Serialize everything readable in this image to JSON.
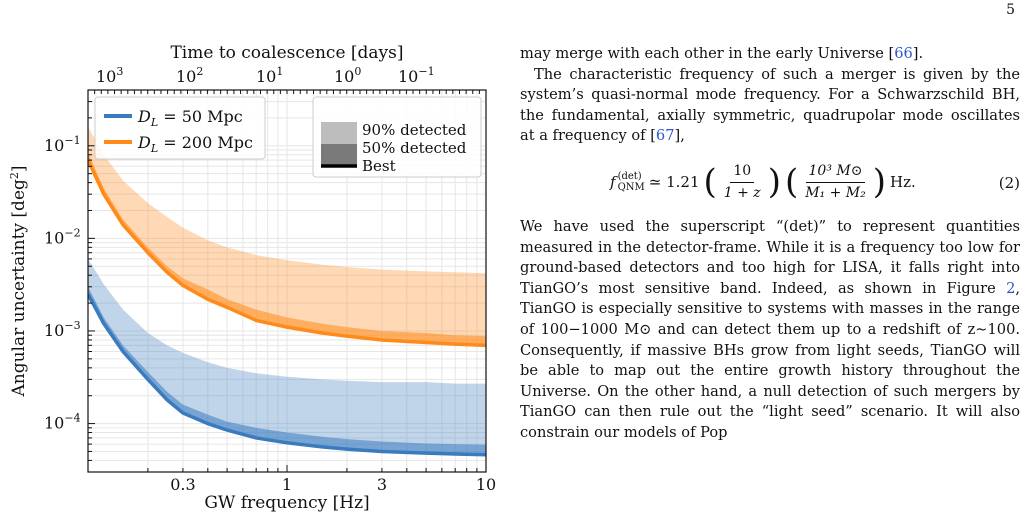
{
  "page": {
    "number": "5"
  },
  "figure": {
    "top_axis_label": "Time to coalescence [days]",
    "top_ticks": [
      "10",
      "10",
      "10",
      "10",
      "10"
    ],
    "top_tick_exps": [
      "3",
      "2",
      "1",
      "0",
      "−1"
    ],
    "bottom_axis_label": "GW frequency [Hz]",
    "left_axis_label": "Angular uncertainty [deg",
    "left_axis_label_exp": "2",
    "left_axis_label_end": "]",
    "x_ticks": [
      "0.3",
      "1",
      "3",
      "10"
    ],
    "y_ticks": [
      "10",
      "10",
      "10",
      "10"
    ],
    "y_tick_exps": [
      "−1",
      "−2",
      "−3",
      "−4"
    ],
    "legend_lines": [
      {
        "prefix": "D",
        "sub": "L",
        "text": " = 50 Mpc",
        "color": "#3a7bbf"
      },
      {
        "prefix": "D",
        "sub": "L",
        "text": " = 200 Mpc",
        "color": "#ff8a1a"
      }
    ],
    "legend_bands": [
      {
        "label": "90% detected"
      },
      {
        "label": "50% detected"
      },
      {
        "label": "Best"
      }
    ]
  },
  "chart_data": {
    "type": "area",
    "xlabel": "GW frequency [Hz]",
    "ylabel": "Angular uncertainty [deg^2]",
    "x_scale": "log",
    "y_scale": "log",
    "xlim": [
      0.1,
      10
    ],
    "ylim": [
      3e-05,
      0.4
    ],
    "x": [
      0.1,
      0.12,
      0.15,
      0.2,
      0.25,
      0.3,
      0.4,
      0.5,
      0.7,
      1,
      1.5,
      2,
      3,
      5,
      7,
      10
    ],
    "series": [
      {
        "name": "D_L = 50 Mpc",
        "color": "#3a7bbf",
        "best": [
          0.0025,
          0.0012,
          0.0006,
          0.0003,
          0.00018,
          0.00013,
          0.0001,
          8.5e-05,
          7e-05,
          6.2e-05,
          5.6e-05,
          5.3e-05,
          5e-05,
          4.8e-05,
          4.7e-05,
          4.6e-05
        ],
        "p50": [
          0.003,
          0.0014,
          0.0007,
          0.00036,
          0.00022,
          0.00016,
          0.000125,
          0.000105,
          9e-05,
          8e-05,
          7.2e-05,
          6.8e-05,
          6.4e-05,
          6.1e-05,
          6e-05,
          5.9e-05
        ],
        "p90": [
          0.006,
          0.0032,
          0.0017,
          0.00095,
          0.0007,
          0.00058,
          0.00046,
          0.0004,
          0.00035,
          0.00032,
          0.0003,
          0.00029,
          0.00028,
          0.00028,
          0.00027,
          0.00027
        ]
      },
      {
        "name": "D_L = 200 Mpc",
        "color": "#ff8a1a",
        "best": [
          0.07,
          0.03,
          0.014,
          0.007,
          0.0043,
          0.0031,
          0.0022,
          0.0018,
          0.0013,
          0.0011,
          0.00095,
          0.00088,
          0.0008,
          0.00075,
          0.00072,
          0.0007
        ],
        "p50": [
          0.085,
          0.035,
          0.016,
          0.008,
          0.005,
          0.0037,
          0.0028,
          0.0022,
          0.0017,
          0.0014,
          0.0012,
          0.0011,
          0.001,
          0.00095,
          0.0009,
          0.00088
        ],
        "p90": [
          0.16,
          0.08,
          0.042,
          0.024,
          0.017,
          0.013,
          0.0095,
          0.008,
          0.0066,
          0.0058,
          0.0052,
          0.0049,
          0.0046,
          0.0044,
          0.0043,
          0.0042
        ]
      }
    ],
    "legend": "top-left and top-right",
    "grid": true
  },
  "text": {
    "p1": "may merge with each other in the early Universe [",
    "p1_cite": "66",
    "p1_end": "].",
    "p2": "The characteristic frequency of such a merger is given by the system’s quasi-normal mode frequency. For a Schwarzschild BH, the fundamental, axially symmetric, quadrupolar mode oscillates at a frequency of [",
    "p2_cite": "67",
    "p2_end": "],",
    "eq": {
      "lhs": "f",
      "lhs_sup": "(det)",
      "lhs_sub": "QNM",
      "rel": " ≃ 1.21",
      "frac1_num": "10",
      "frac1_den": "1 + z",
      "frac2_num": "10³ M⊙",
      "frac2_den": "M₁ + M₂",
      "unit": "Hz.",
      "number": "(2)"
    },
    "p3a": "We have used the superscript “(det)” to represent quantities measured in the detector-frame. While it is a frequency too low for ground-based detectors and too high for LISA, it falls right into TianGO’s most sensitive band. Indeed, as shown in Figure ",
    "p3_ref": "2",
    "p3b": ", TianGO is especially sensitive to systems with masses in the range of 100−1000 M⊙ and can detect them up to a redshift of z∼100. Consequently, if massive BHs grow from light seeds, TianGO will be able to map out the entire growth history throughout the Universe. On the other hand, a null detection of such mergers by TianGO can then rule out the “light seed” scenario. It will also constrain our models of Pop"
  }
}
